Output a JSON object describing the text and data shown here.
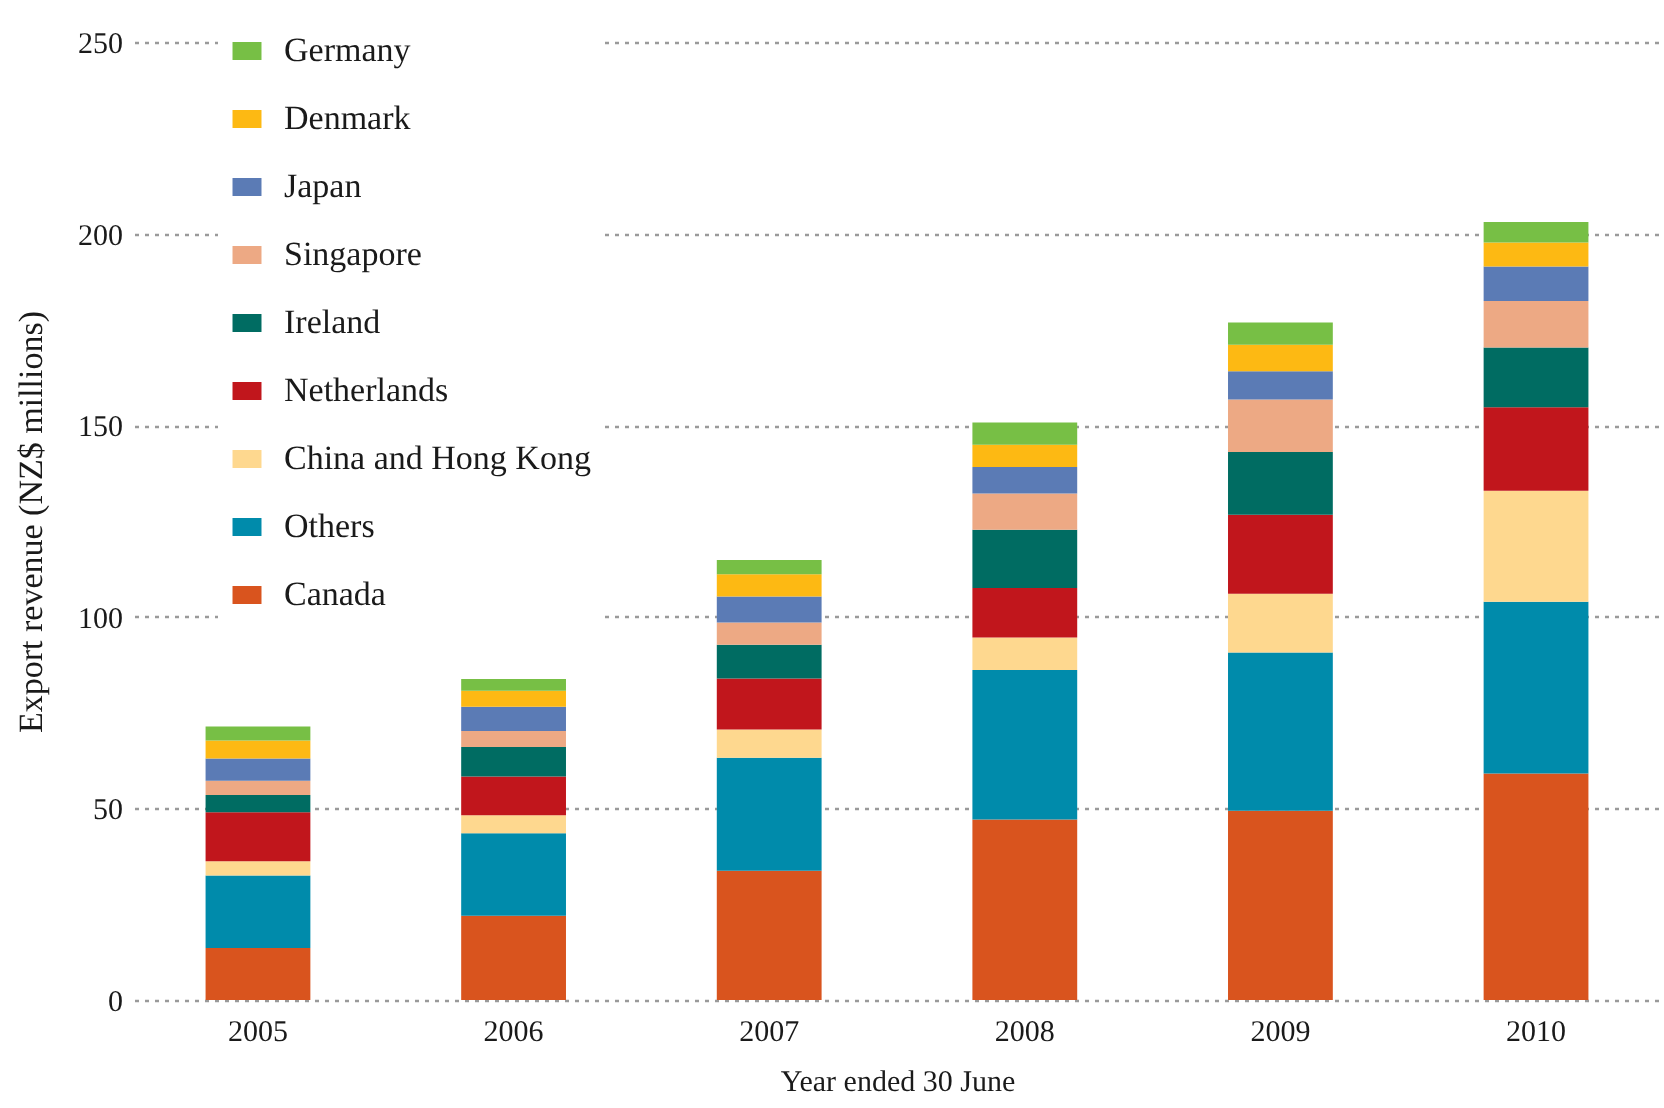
{
  "chart_data": {
    "type": "bar",
    "stacked": true,
    "xlabel": "Year ended 30 June",
    "ylabel": "Export revenue (NZ$ millions)",
    "categories": [
      "2005",
      "2006",
      "2007",
      "2008",
      "2009",
      "2010"
    ],
    "ylim": [
      0,
      250
    ],
    "yticks": [
      0,
      50,
      100,
      150,
      200,
      250
    ],
    "grid": "y",
    "legend": "top left",
    "series": [
      {
        "name": "Canada",
        "color": "#d9541e",
        "values": [
          13.6,
          22.0,
          33.7,
          47.1,
          49.4,
          59.1
        ]
      },
      {
        "name": "Others",
        "color": "#008bab",
        "values": [
          18.9,
          21.5,
          29.5,
          39.0,
          41.3,
          44.8
        ]
      },
      {
        "name": "China and Hong Kong",
        "color": "#fed88f",
        "values": [
          3.7,
          4.7,
          7.4,
          8.5,
          15.3,
          29.0
        ]
      },
      {
        "name": "Netherlands",
        "color": "#c1161c",
        "values": [
          12.8,
          10.1,
          13.3,
          12.9,
          20.6,
          21.8
        ]
      },
      {
        "name": "Ireland",
        "color": "#006c62",
        "values": [
          4.5,
          7.7,
          8.8,
          15.2,
          16.4,
          15.6
        ]
      },
      {
        "name": "Singapore",
        "color": "#eda984",
        "values": [
          3.7,
          4.2,
          5.8,
          9.5,
          13.7,
          12.1
        ]
      },
      {
        "name": "Japan",
        "color": "#5b7bb5",
        "values": [
          5.8,
          6.3,
          6.8,
          6.9,
          7.4,
          9.0
        ]
      },
      {
        "name": "Denmark",
        "color": "#fdb913",
        "values": [
          4.7,
          4.2,
          5.8,
          5.8,
          6.9,
          6.3
        ]
      },
      {
        "name": "Germany",
        "color": "#77bf45",
        "values": [
          3.7,
          3.1,
          3.7,
          5.8,
          5.8,
          5.3
        ]
      }
    ]
  }
}
